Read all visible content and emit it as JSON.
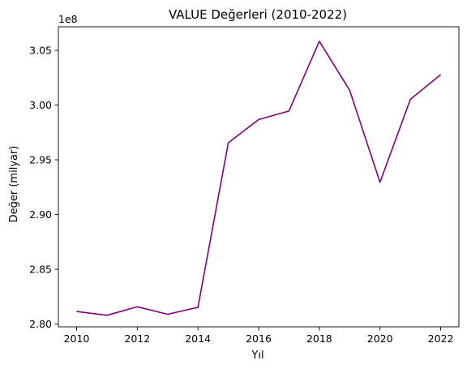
{
  "chart_data": {
    "type": "line",
    "title": "VALUE Değerleri (2010-2022)",
    "xlabel": "Yıl",
    "ylabel": "Değer (milyar)",
    "y_offset_label": "1e8",
    "x": [
      2010,
      2011,
      2012,
      2013,
      2014,
      2015,
      2016,
      2017,
      2018,
      2019,
      2020,
      2021,
      2022
    ],
    "series": [
      {
        "color": "#800080",
        "values": [
          2.8115,
          2.808,
          2.8158,
          2.809,
          2.8153,
          2.9655,
          2.9868,
          2.9946,
          3.0582,
          3.0135,
          2.9295,
          3.0052,
          3.0278
        ]
      }
    ],
    "xlim": [
      2009.4,
      2022.6
    ],
    "ylim": [
      2.7975,
      3.0715
    ],
    "x_ticks": [
      "2010",
      "2012",
      "2014",
      "2016",
      "2018",
      "2020",
      "2022"
    ],
    "y_ticks": [
      "2.80",
      "2.85",
      "2.90",
      "2.95",
      "3.00",
      "3.05"
    ],
    "grid": false,
    "legend": "none"
  }
}
